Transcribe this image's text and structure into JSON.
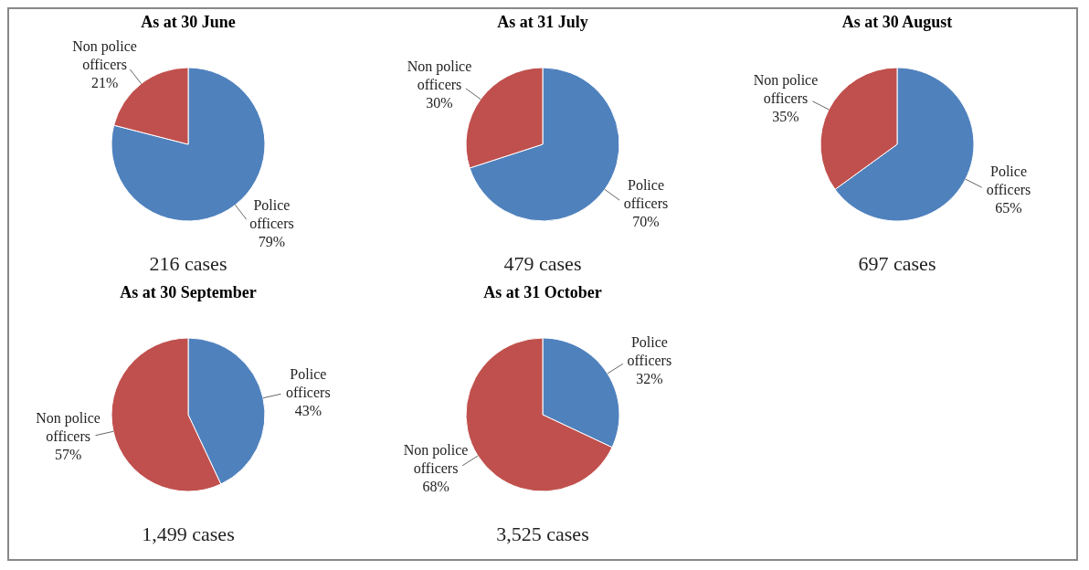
{
  "chart_data": [
    {
      "type": "pie",
      "title": "As at 30 June",
      "categories": [
        "Police officers",
        "Non police officers"
      ],
      "values": [
        79,
        21
      ],
      "value_labels": [
        "79%",
        "21%"
      ],
      "colors": [
        "#4f81bd",
        "#c0504d"
      ],
      "annotations": [
        "216 cases"
      ]
    },
    {
      "type": "pie",
      "title": "As at 31 July",
      "categories": [
        "Police officers",
        "Non police officers"
      ],
      "values": [
        70,
        30
      ],
      "value_labels": [
        "70%",
        "30%"
      ],
      "colors": [
        "#4f81bd",
        "#c0504d"
      ],
      "annotations": [
        "479 cases"
      ]
    },
    {
      "type": "pie",
      "title": "As at 30 August",
      "categories": [
        "Police officers",
        "Non police officers"
      ],
      "values": [
        65,
        35
      ],
      "value_labels": [
        "65%",
        "35%"
      ],
      "colors": [
        "#4f81bd",
        "#c0504d"
      ],
      "annotations": [
        "697 cases"
      ]
    },
    {
      "type": "pie",
      "title": "As at 30 September",
      "categories": [
        "Police officers",
        "Non police officers"
      ],
      "values": [
        43,
        57
      ],
      "value_labels": [
        "43%",
        "57%"
      ],
      "colors": [
        "#4f81bd",
        "#c0504d"
      ],
      "annotations": [
        "1,499 cases"
      ]
    },
    {
      "type": "pie",
      "title": "As at 31 October",
      "categories": [
        "Police officers",
        "Non police officers"
      ],
      "values": [
        32,
        68
      ],
      "value_labels": [
        "32%",
        "68%"
      ],
      "colors": [
        "#4f81bd",
        "#c0504d"
      ],
      "annotations": [
        "3,525 cases"
      ]
    }
  ]
}
